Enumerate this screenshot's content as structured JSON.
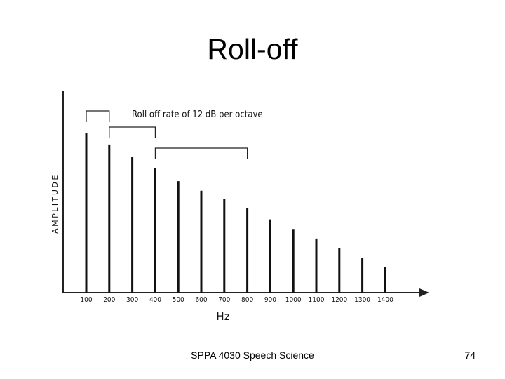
{
  "slide": {
    "title": "Roll-off",
    "footer_text": "SPPA 4030 Speech Science",
    "page_number": "74"
  },
  "chart_data": {
    "type": "bar",
    "title": "",
    "xlabel": "Hz",
    "ylabel": "AMPLITUDE",
    "categories": [
      "100",
      "200",
      "300",
      "400",
      "500",
      "600",
      "700",
      "800",
      "900",
      "1000",
      "1100",
      "1200",
      "1300",
      "1400"
    ],
    "values": [
      100,
      93,
      85,
      78,
      70,
      64,
      59,
      53,
      46,
      40,
      34,
      28,
      22,
      16
    ],
    "ylim": [
      0,
      100
    ],
    "grid": false,
    "annotation": "Roll off rate of 12 dB per octave",
    "octave_brackets": [
      [
        "100",
        "200"
      ],
      [
        "200",
        "400"
      ],
      [
        "400",
        "800"
      ]
    ],
    "colors": {
      "bar": "#111111",
      "axis": "#222222",
      "text": "#111111"
    }
  }
}
